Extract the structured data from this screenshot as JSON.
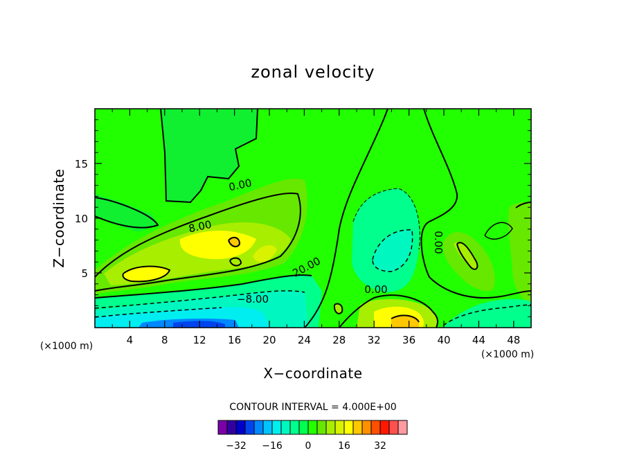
{
  "chart_data": {
    "type": "heatmap",
    "title": "zonal velocity",
    "xlabel": "X−coordinate",
    "ylabel": "Z−coordinate",
    "x_unit_left": "(×1000 m)",
    "x_unit_right": "(×1000 m)",
    "xlim": [
      0,
      50
    ],
    "ylim": [
      0,
      20
    ],
    "x_ticks": [
      "4",
      "8",
      "12",
      "16",
      "20",
      "24",
      "28",
      "32",
      "36",
      "40",
      "44",
      "48"
    ],
    "y_ticks": [
      "5",
      "10",
      "15"
    ],
    "contour_interval_text": "CONTOUR INTERVAL = 4.000E+00",
    "contour_labels": [
      "0.00",
      "8.00",
      "20.00",
      "−8.00",
      "0.00",
      "0.00"
    ],
    "colorbar": {
      "tick_labels": [
        "−32",
        "−16",
        "0",
        "16",
        "32"
      ],
      "colors": [
        "#7a00a8",
        "#3200a0",
        "#0000c8",
        "#0044ee",
        "#0088ff",
        "#00c4ff",
        "#00eef0",
        "#00f8c0",
        "#00ff8c",
        "#00ff50",
        "#22ff00",
        "#66e800",
        "#a8ee00",
        "#d8f200",
        "#ffff00",
        "#ffc800",
        "#ff9000",
        "#ff5000",
        "#ff1800",
        "#ff5050",
        "#ff9aa0"
      ]
    }
  }
}
